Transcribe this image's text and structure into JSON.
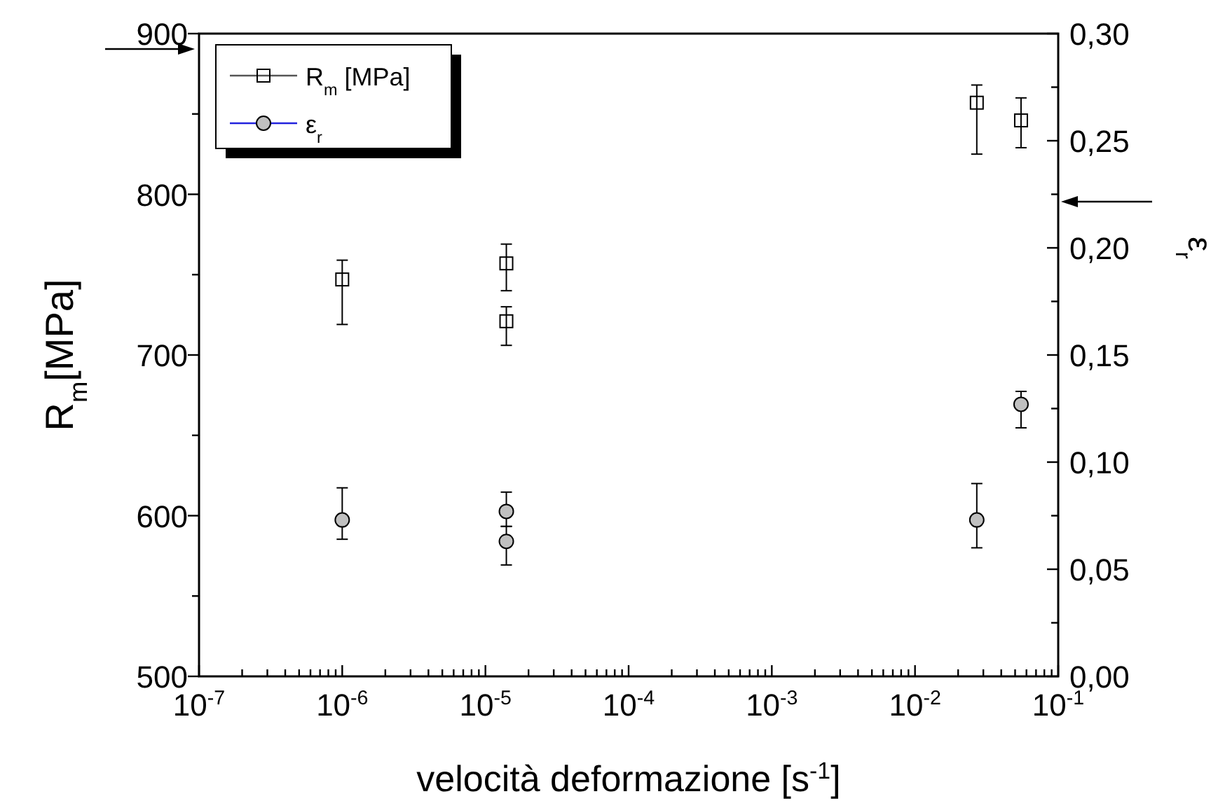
{
  "chart_data": {
    "type": "scatter",
    "xlabel": "velocità deformazione [s$^{-1}$]",
    "ylabel": "R$_{m}$[MPa]",
    "y2label": "ε$_{r}$",
    "log": "x",
    "xlim": [
      1e-07,
      0.1
    ],
    "xticks": [
      {
        "value": 1e-07,
        "label": "10$^{-7}$"
      },
      {
        "value": 2e-07,
        "label": null
      },
      {
        "value": 3e-07,
        "label": null
      },
      {
        "value": 4e-07,
        "label": null
      },
      {
        "value": 5e-07,
        "label": null
      },
      {
        "value": 6e-07,
        "label": null
      },
      {
        "value": 7e-07,
        "label": null
      },
      {
        "value": 8e-07,
        "label": null
      },
      {
        "value": 9e-07,
        "label": null
      },
      {
        "value": 1e-06,
        "label": "10$^{-6}$"
      },
      {
        "value": 2e-06,
        "label": null
      },
      {
        "value": 3e-06,
        "label": null
      },
      {
        "value": 4e-06,
        "label": null
      },
      {
        "value": 5e-06,
        "label": null
      },
      {
        "value": 6e-06,
        "label": null
      },
      {
        "value": 7e-06,
        "label": null
      },
      {
        "value": 8e-06,
        "label": null
      },
      {
        "value": 9e-06,
        "label": null
      },
      {
        "value": 1e-05,
        "label": "10$^{-5}$"
      },
      {
        "value": 2e-05,
        "label": null
      },
      {
        "value": 3e-05,
        "label": null
      },
      {
        "value": 4e-05,
        "label": null
      },
      {
        "value": 5e-05,
        "label": null
      },
      {
        "value": 6e-05,
        "label": null
      },
      {
        "value": 7e-05,
        "label": null
      },
      {
        "value": 8e-05,
        "label": null
      },
      {
        "value": 9e-05,
        "label": null
      },
      {
        "value": 0.0001,
        "label": "10$^{-4}$"
      },
      {
        "value": 0.0002,
        "label": null
      },
      {
        "value": 0.0003,
        "label": null
      },
      {
        "value": 0.0004,
        "label": null
      },
      {
        "value": 0.0005,
        "label": null
      },
      {
        "value": 0.0006,
        "label": null
      },
      {
        "value": 0.0007,
        "label": null
      },
      {
        "value": 0.0008,
        "label": null
      },
      {
        "value": 0.0009,
        "label": null
      },
      {
        "value": 0.001,
        "label": "10$^{-3}$"
      },
      {
        "value": 0.002,
        "label": null
      },
      {
        "value": 0.003,
        "label": null
      },
      {
        "value": 0.004,
        "label": null
      },
      {
        "value": 0.005,
        "label": null
      },
      {
        "value": 0.006,
        "label": null
      },
      {
        "value": 0.007,
        "label": null
      },
      {
        "value": 0.008,
        "label": null
      },
      {
        "value": 0.009,
        "label": null
      },
      {
        "value": 0.01,
        "label": "10$^{-2}$"
      },
      {
        "value": 0.02,
        "label": null
      },
      {
        "value": 0.03,
        "label": null
      },
      {
        "value": 0.04,
        "label": null
      },
      {
        "value": 0.05,
        "label": null
      },
      {
        "value": 0.06,
        "label": null
      },
      {
        "value": 0.07,
        "label": null
      },
      {
        "value": 0.08,
        "label": null
      },
      {
        "value": 0.09,
        "label": null
      },
      {
        "value": 0.1,
        "label": "10$^{-1}$"
      }
    ],
    "ylim": [
      500,
      900
    ],
    "yticks": [
      500,
      {
        "value": 550,
        "label": null
      },
      600,
      {
        "value": 650,
        "label": null
      },
      700,
      {
        "value": 750,
        "label": null
      },
      800,
      {
        "value": 850,
        "label": null
      },
      900
    ],
    "y2lim": [
      0,
      0.3
    ],
    "y2ticks": [
      {
        "value": 0,
        "label": "0,00"
      },
      {
        "value": 0.025,
        "label": null
      },
      {
        "value": 0.05,
        "label": "0,05"
      },
      {
        "value": 0.075,
        "label": null
      },
      {
        "value": 0.1,
        "label": "0,10"
      },
      {
        "value": 0.125,
        "label": null
      },
      {
        "value": 0.15,
        "label": "0,15"
      },
      {
        "value": 0.175,
        "label": null
      },
      {
        "value": 0.2,
        "label": "0,20"
      },
      {
        "value": 0.225,
        "label": null
      },
      {
        "value": 0.25,
        "label": "0,25"
      },
      {
        "value": 0.275,
        "label": null
      },
      {
        "value": 0.3,
        "label": "0,30"
      }
    ],
    "legend": "top left",
    "grid": false,
    "series": [
      {
        "name": "R$_{m}$ [MPa]",
        "color": "#000000",
        "marker": "square",
        "x": [
          1e-06,
          1.4e-05,
          1.4e-05,
          0.027,
          0.055
        ],
        "values": [
          747,
          757,
          721,
          857,
          846
        ],
        "errors": [
          [
            719,
            759
          ],
          [
            740,
            769
          ],
          [
            706,
            730
          ],
          [
            825,
            868
          ],
          [
            829,
            860
          ]
        ]
      },
      {
        "name": "ε$_{r}$",
        "color": "#c0c0c0",
        "marker": "circle",
        "axis": "y2",
        "x": [
          1e-06,
          1.4e-05,
          1.4e-05,
          0.027,
          0.055
        ],
        "values": [
          0.073,
          0.077,
          0.063,
          0.073,
          0.127
        ],
        "errors": [
          [
            0.064,
            0.088
          ],
          [
            0.07,
            0.086
          ],
          [
            0.052,
            0.07
          ],
          [
            0.06,
            0.09
          ],
          [
            0.116,
            0.133
          ]
        ]
      }
    ]
  }
}
